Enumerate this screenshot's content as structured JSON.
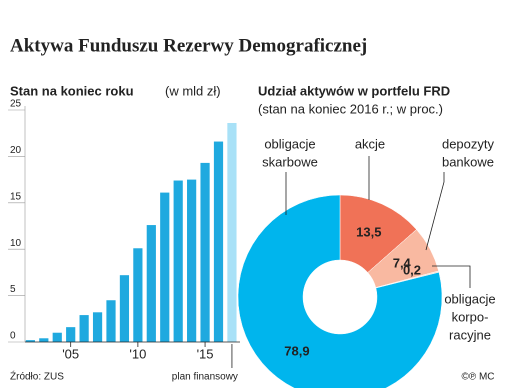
{
  "title": "Aktywa Funduszu Rezerwy Demograficznej",
  "source": "Źródło: ZUS",
  "credit": "©℗ MC",
  "chart_data": [
    {
      "type": "bar",
      "title": "Stan na koniec roku",
      "unit": "(w mld zł)",
      "x": [
        2002,
        2003,
        2004,
        2005,
        2006,
        2007,
        2008,
        2009,
        2010,
        2011,
        2012,
        2013,
        2014,
        2015,
        2016,
        2017
      ],
      "series": [
        {
          "color": "#1fa9df",
          "values": [
            0.2,
            0.4,
            1.0,
            1.6,
            2.9,
            3.2,
            4.5,
            7.2,
            10.1,
            12.6,
            16.1,
            17.4,
            17.5,
            19.3,
            21.6,
            null
          ]
        },
        {
          "name": "plan finansowy",
          "color": "#a8e1f7",
          "values": [
            null,
            null,
            null,
            null,
            null,
            null,
            null,
            null,
            null,
            null,
            null,
            null,
            null,
            null,
            null,
            23.6
          ]
        }
      ],
      "xlim": [
        2001.6,
        2017.6
      ],
      "xticks": [
        {
          "value": 2005,
          "label": "'05"
        },
        {
          "value": 2010,
          "label": "'10"
        },
        {
          "value": 2015,
          "label": "'15"
        }
      ],
      "ylim": [
        0,
        25
      ],
      "yticks": [
        0,
        5,
        10,
        15,
        20,
        25
      ]
    },
    {
      "type": "pie",
      "title": "Udział aktywów w portfelu FRD",
      "subtitle": "(stan na koniec 2016 r.; w proc.)",
      "categories": [
        [
          "akcje"
        ],
        [
          "depozyty",
          "bankowe"
        ],
        [
          "obligacje",
          "korpo-",
          "racyjne"
        ],
        [
          "obligacje",
          "skarbowe"
        ]
      ],
      "values": [
        13.5,
        7.4,
        0.2,
        78.9
      ],
      "value_labels": [
        "13,5",
        "7,4",
        "0,2",
        "78,9"
      ],
      "colors": [
        "#f07257",
        "#f9b9a1",
        "#fcd9c9",
        "#00b5ed"
      ]
    }
  ]
}
